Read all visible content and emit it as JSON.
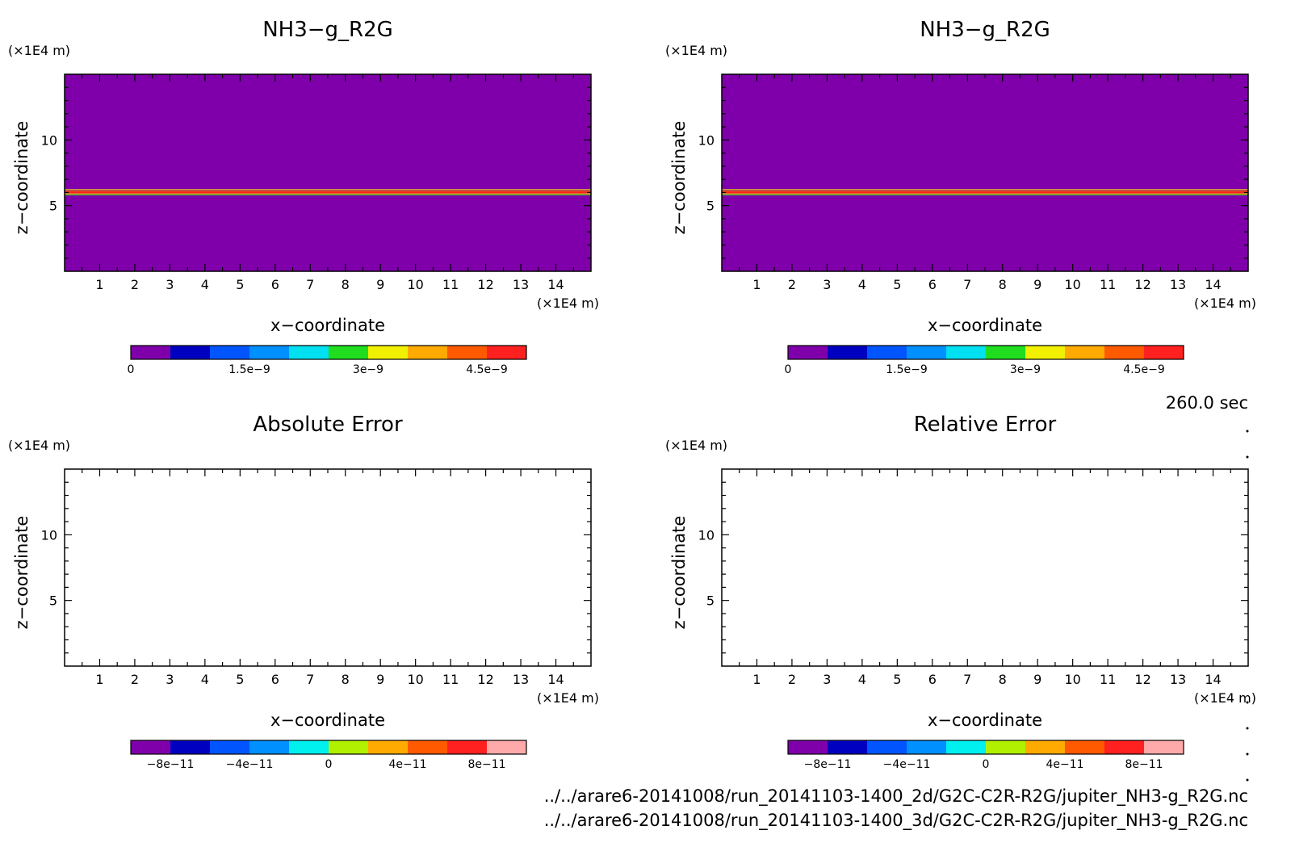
{
  "timestamp": "260.0 sec",
  "file_paths": [
    "../../arare6-20141008/run_20141103-1400_2d/G2C-C2R-R2G/jupiter_NH3-g_R2G.nc",
    "../../arare6-20141008/run_20141103-1400_3d/G2C-C2R-R2G/jupiter_NH3-g_R2G.nc"
  ],
  "chart_data": [
    {
      "type": "heatmap",
      "title": "NH3−g_R2G",
      "xlabel": "x−coordinate",
      "ylabel": "z−coordinate",
      "x_unit": "(×1E4 m)",
      "y_unit": "(×1E4 m)",
      "xlim": [
        0,
        15
      ],
      "ylim": [
        0,
        15
      ],
      "x_ticks": [
        1,
        2,
        3,
        4,
        5,
        6,
        7,
        8,
        9,
        10,
        11,
        12,
        13,
        14
      ],
      "y_ticks": [
        5,
        10
      ],
      "field_description": "uniform background value 0 with a thin high-value layer at z ≈ 6",
      "background_value": 0,
      "layer_z": 6.0,
      "colorbar": {
        "colors": [
          "#7f00aa",
          "#0000c0",
          "#0055ff",
          "#0090ff",
          "#00e0f0",
          "#20dd20",
          "#f0f000",
          "#ffaa00",
          "#ff5a00",
          "#ff2020"
        ],
        "tick_labels": [
          "0",
          "1.5e−9",
          "3e−9",
          "4.5e−9"
        ],
        "tick_values": [
          0,
          1.5e-09,
          3e-09,
          4.5e-09
        ],
        "range": [
          0,
          5e-09
        ]
      }
    },
    {
      "type": "heatmap",
      "title": "NH3−g_R2G",
      "xlabel": "x−coordinate",
      "ylabel": "z−coordinate",
      "x_unit": "(×1E4 m)",
      "y_unit": "(×1E4 m)",
      "xlim": [
        0,
        15
      ],
      "ylim": [
        0,
        15
      ],
      "x_ticks": [
        1,
        2,
        3,
        4,
        5,
        6,
        7,
        8,
        9,
        10,
        11,
        12,
        13,
        14
      ],
      "y_ticks": [
        5,
        10
      ],
      "background_value": 0,
      "layer_z": 6.0,
      "colorbar": {
        "colors": [
          "#7f00aa",
          "#0000c0",
          "#0055ff",
          "#0090ff",
          "#00e0f0",
          "#20dd20",
          "#f0f000",
          "#ffaa00",
          "#ff5a00",
          "#ff2020"
        ],
        "tick_labels": [
          "0",
          "1.5e−9",
          "3e−9",
          "4.5e−9"
        ],
        "tick_values": [
          0,
          1.5e-09,
          3e-09,
          4.5e-09
        ],
        "range": [
          0,
          5e-09
        ]
      }
    },
    {
      "type": "heatmap",
      "title": "Absolute Error",
      "xlabel": "x−coordinate",
      "ylabel": "z−coordinate",
      "x_unit": "(×1E4 m)",
      "y_unit": "(×1E4 m)",
      "xlim": [
        0,
        15
      ],
      "ylim": [
        0,
        15
      ],
      "x_ticks": [
        1,
        2,
        3,
        4,
        5,
        6,
        7,
        8,
        9,
        10,
        11,
        12,
        13,
        14
      ],
      "y_ticks": [
        5,
        10
      ],
      "field": "empty",
      "colorbar": {
        "colors": [
          "#7f00aa",
          "#0000c0",
          "#0055ff",
          "#0090ff",
          "#00f0f0",
          "#b0f000",
          "#ffaa00",
          "#ff5a00",
          "#ff2020",
          "#ffaaaa"
        ],
        "tick_labels": [
          "−8e−11",
          "−4e−11",
          "0",
          "4e−11",
          "8e−11"
        ],
        "tick_values": [
          -8e-11,
          -4e-11,
          0,
          4e-11,
          8e-11
        ],
        "range": [
          -1e-10,
          1e-10
        ]
      }
    },
    {
      "type": "heatmap",
      "title": "Relative Error",
      "xlabel": "x−coordinate",
      "ylabel": "z−coordinate",
      "x_unit": "(×1E4 m)",
      "y_unit": "(×1E4 m)",
      "xlim": [
        0,
        15
      ],
      "ylim": [
        0,
        15
      ],
      "x_ticks": [
        1,
        2,
        3,
        4,
        5,
        6,
        7,
        8,
        9,
        10,
        11,
        12,
        13,
        14
      ],
      "y_ticks": [
        5,
        10
      ],
      "field": "empty",
      "colorbar": {
        "colors": [
          "#7f00aa",
          "#0000c0",
          "#0055ff",
          "#0090ff",
          "#00f0f0",
          "#b0f000",
          "#ffaa00",
          "#ff5a00",
          "#ff2020",
          "#ffaaaa"
        ],
        "tick_labels": [
          "−8e−11",
          "−4e−11",
          "0",
          "4e−11",
          "8e−11"
        ],
        "tick_values": [
          -8e-11,
          -4e-11,
          0,
          4e-11,
          8e-11
        ],
        "range": [
          -1e-10,
          1e-10
        ]
      }
    }
  ]
}
